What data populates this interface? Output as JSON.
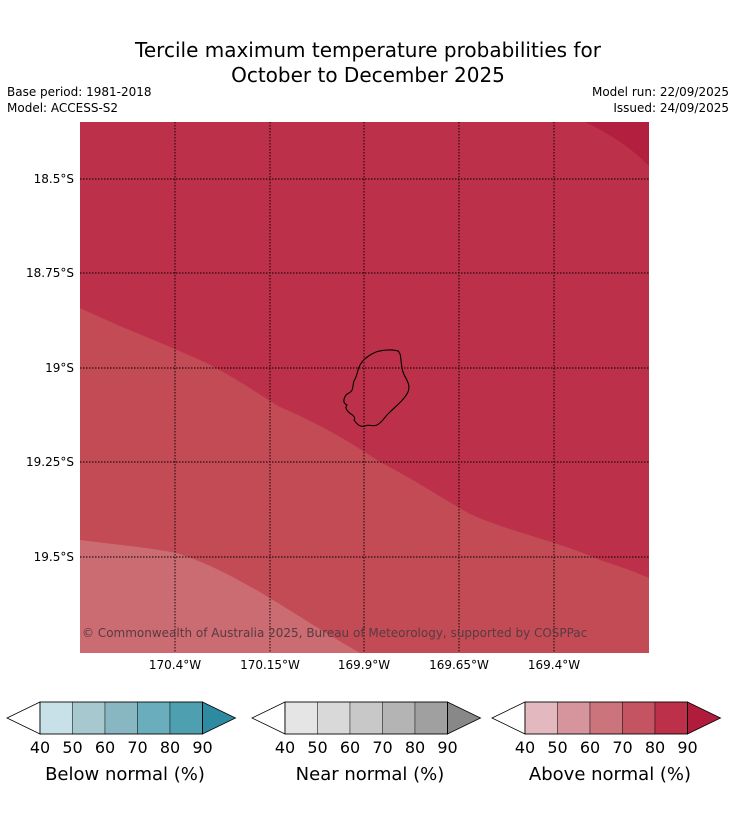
{
  "title": {
    "line1": "Tercile maximum temperature probabilities for",
    "line2": "October to December 2025"
  },
  "meta": {
    "base_period": "Base period: 1981-2018",
    "model": "Model: ACCESS-S2",
    "model_run": "Model run: 22/09/2025",
    "issued": "Issued: 24/09/2025"
  },
  "map": {
    "lat_labels": [
      "18.5°S",
      "18.75°S",
      "19°S",
      "19.25°S",
      "19.5°S"
    ],
    "lon_labels": [
      "170.4°W",
      "170.15°W",
      "169.9°W",
      "169.65°W",
      "169.4°W"
    ],
    "copyright": "© Commonwealth of Australia 2025, Bureau of Meteorology, supported by COSPPac",
    "fill_colors": {
      "above_90": "#b3203f",
      "above_80": "#bc3149",
      "above_70": "#c24b56",
      "above_60": "#cb6b72"
    }
  },
  "colorbars": [
    {
      "name": "below",
      "label": "Below normal (%)",
      "ticks": [
        "40",
        "50",
        "60",
        "70",
        "80",
        "90"
      ],
      "colors": [
        "#c8e1e8",
        "#a6c8ce",
        "#88b7c2",
        "#6aaebd",
        "#4e9fb0",
        "#2e8aa0"
      ]
    },
    {
      "name": "near",
      "label": "Near normal (%)",
      "ticks": [
        "40",
        "50",
        "60",
        "70",
        "80",
        "90"
      ],
      "colors": [
        "#e5e5e5",
        "#d9d9d9",
        "#c8c8c8",
        "#b4b4b4",
        "#a0a0a0",
        "#888888"
      ]
    },
    {
      "name": "above",
      "label": "Above normal (%)",
      "ticks": [
        "40",
        "50",
        "60",
        "70",
        "80",
        "90"
      ],
      "colors": [
        "#e3b8bf",
        "#d6959d",
        "#cb747b",
        "#c45462",
        "#bc3149",
        "#b01c3c"
      ]
    }
  ]
}
